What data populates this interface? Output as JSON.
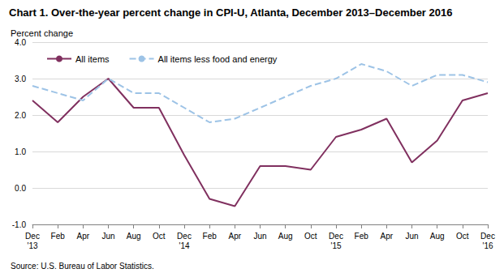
{
  "chart_data": {
    "type": "line",
    "title": "Chart 1. Over-the-year percent change in CPI-U, Atlanta, December 2013–December 2016",
    "y_label": "Percent change",
    "source": "Source: U.S. Bureau of Labor Statistics.",
    "categories": [
      "Dec\n'13",
      "Feb",
      "Apr",
      "Jun",
      "Aug",
      "Oct",
      "Dec\n'14",
      "Feb",
      "Apr",
      "Jun",
      "Aug",
      "Oct",
      "Dec\n'15",
      "Feb",
      "Apr",
      "Jun",
      "Aug",
      "Oct",
      "Dec\n'16"
    ],
    "series": [
      {
        "name": "All items",
        "color": "#80305f",
        "line_style": "solid",
        "marker": "none",
        "values": [
          2.4,
          1.8,
          2.5,
          3.0,
          2.2,
          2.2,
          0.9,
          -0.3,
          -0.5,
          0.6,
          0.6,
          0.5,
          1.4,
          1.6,
          1.9,
          0.7,
          1.3,
          2.4,
          2.6
        ]
      },
      {
        "name": "All items less food and energy",
        "color": "#9dc3e6",
        "line_style": "dashed",
        "marker": "none",
        "values": [
          2.8,
          2.6,
          2.4,
          3.0,
          2.6,
          2.6,
          2.2,
          1.8,
          1.9,
          2.2,
          2.5,
          2.8,
          3.0,
          3.4,
          3.2,
          2.8,
          3.1,
          3.1,
          2.9
        ]
      }
    ],
    "ylim": [
      -1.0,
      4.0
    ],
    "yticks": [
      {
        "value": -1.0,
        "label": "-1.0"
      },
      {
        "value": 0.0,
        "label": "0.0"
      },
      {
        "value": 1.0,
        "label": "1.0"
      },
      {
        "value": 2.0,
        "label": "2.0"
      },
      {
        "value": 3.0,
        "label": "3.0"
      },
      {
        "value": 4.0,
        "label": "4.0"
      }
    ],
    "grid": true,
    "legend": "upper left"
  }
}
